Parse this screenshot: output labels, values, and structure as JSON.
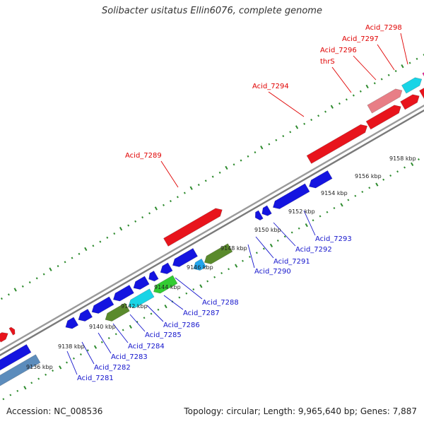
{
  "title": "Solibacter usitatus Ellin6076, complete genome",
  "footer": {
    "accession": "Accession: NC_008536",
    "summary": "Topology: circular; Length: 9,965,640 bp; Genes: 7,887"
  },
  "colors": {
    "forward_strand": "#e8141c",
    "reverse_strand": "#1414e0",
    "backbone": "#8c8c8c",
    "forward_label": "#e00000",
    "reverse_label": "#1414cc",
    "tick": "#2e8b2e",
    "cyan_gene": "#19d4e6",
    "olive_gene": "#5a8a2c",
    "green_gene": "#33cc33",
    "pink_gene": "#e87e86",
    "magenta_gene": "#ee2299",
    "steel_gene": "#5c8cbc"
  },
  "axis_ticks": [
    "9136 kbp",
    "9138 kbp",
    "9140 kbp",
    "9142 kbp",
    "9144 kbp",
    "9146 kbp",
    "9148 kbp",
    "9150 kbp",
    "9152 kbp",
    "9154 kbp",
    "9156 kbp",
    "9158 kbp"
  ],
  "forward_labels": [
    "Acid_7289",
    "Acid_7294",
    "thrS",
    "Acid_7296",
    "Acid_7297",
    "Acid_7298"
  ],
  "reverse_labels": [
    "Acid_7281",
    "Acid_7282",
    "Acid_7283",
    "Acid_7284",
    "Acid_7285",
    "Acid_7286",
    "Acid_7287",
    "Acid_7288",
    "Acid_7290",
    "Acid_7291",
    "Acid_7292",
    "Acid_7293"
  ]
}
